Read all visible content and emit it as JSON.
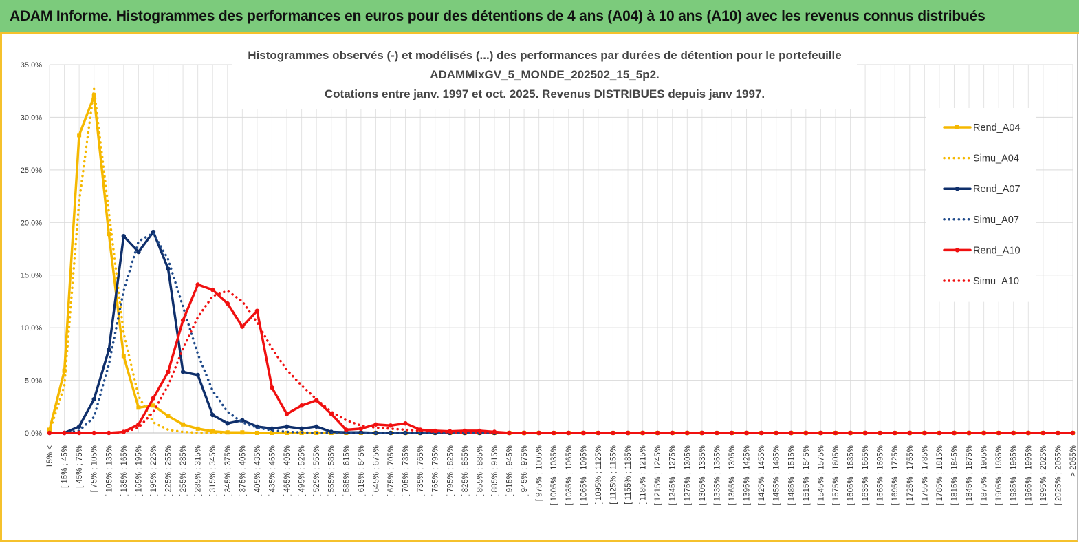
{
  "banner": {
    "title": "ADAM Informe. Histogrammes des performances en euros pour des détentions de 4 ans (A04) à 10 ans (A10) avec les revenus connus distribués"
  },
  "colors": {
    "banner_bg": "#7ccb7c",
    "accent_border": "#f5c12c",
    "A04": "#f5b800",
    "A07": "#0f2f6b",
    "A10": "#f01010"
  },
  "chart_data": {
    "type": "line",
    "title_lines": [
      "Histogrammes observés (-) et modélisés (...) des performances par durées de détention pour le portefeuille",
      "ADAMMixGV_5_MONDE_202502_15_5p2.",
      "Cotations entre janv. 1997 et oct. 2025. Revenus DISTRIBUES depuis janv 1997."
    ],
    "xlabel": "",
    "ylabel": "",
    "ylim": [
      0,
      35
    ],
    "yticks": [
      "0,0%",
      "5,0%",
      "10,0%",
      "15,0%",
      "20,0%",
      "25,0%",
      "30,0%",
      "35,0%"
    ],
    "grid": true,
    "legend_position": "right",
    "categories": [
      "15% <",
      "[ 15% ; 45%",
      "[ 45% ; 75%",
      "[ 75% ; 105%",
      "[ 105% ; 135%",
      "[ 135% ; 165%",
      "[ 165% ; 195%",
      "[ 195% ; 225%",
      "[ 225% ; 255%",
      "[ 255% ; 285%",
      "[ 285% ; 315%",
      "[ 315% ; 345%",
      "[ 345% ; 375%",
      "[ 375% ; 405%",
      "[ 405% ; 435%",
      "[ 435% ; 465%",
      "[ 465% ; 495%",
      "[ 495% ; 525%",
      "[ 525% ; 555%",
      "[ 555% ; 585%",
      "[ 585% ; 615%",
      "[ 615% ; 645%",
      "[ 645% ; 675%",
      "[ 675% ; 705%",
      "[ 705% ; 735%",
      "[ 735% ; 765%",
      "[ 765% ; 795%",
      "[ 795% ; 825%",
      "[ 825% ; 855%",
      "[ 855% ; 885%",
      "[ 885% ; 915%",
      "[ 915% ; 945%",
      "[ 945% ; 975%",
      "[ 975% ; 1005%",
      "[ 1005% ; 1035%",
      "[ 1035% ; 1065%",
      "[ 1065% ; 1095%",
      "[ 1095% ; 1125%",
      "[ 1125% ; 1155%",
      "[ 1155% ; 1185%",
      "[ 1185% ; 1215%",
      "[ 1215% ; 1245%",
      "[ 1245% ; 1275%",
      "[ 1275% ; 1305%",
      "[ 1305% ; 1335%",
      "[ 1335% ; 1365%",
      "[ 1365% ; 1395%",
      "[ 1395% ; 1425%",
      "[ 1425% ; 1455%",
      "[ 1455% ; 1485%",
      "[ 1485% ; 1515%",
      "[ 1515% ; 1545%",
      "[ 1545% ; 1575%",
      "[ 1575% ; 1605%",
      "[ 1605% ; 1635%",
      "[ 1635% ; 1665%",
      "[ 1665% ; 1695%",
      "[ 1695% ; 1725%",
      "[ 1725% ; 1755%",
      "[ 1755% ; 1785%",
      "[ 1785% ; 1815%",
      "[ 1815% ; 1845%",
      "[ 1845% ; 1875%",
      "[ 1875% ; 1905%",
      "[ 1905% ; 1935%",
      "[ 1935% ; 1965%",
      "[ 1965% ; 1995%",
      "[ 1995% ; 2025%",
      "[ 2025% ; 2055%",
      "> 2055%"
    ],
    "series": [
      {
        "name": "Rend_A04",
        "style": "solid",
        "marker": "square",
        "color": "#f5b800",
        "values": [
          0.3,
          5.9,
          28.3,
          32.0,
          18.9,
          7.3,
          2.4,
          2.6,
          1.6,
          0.8,
          0.4,
          0.15,
          0.05,
          0.05,
          0,
          0,
          0,
          0,
          0,
          0,
          0,
          0,
          0,
          0,
          0,
          0,
          0,
          0,
          0,
          0,
          0,
          0,
          0,
          0,
          0,
          0,
          0,
          0,
          0,
          0,
          0,
          0,
          0,
          0,
          0,
          0,
          0,
          0,
          0,
          0,
          0,
          0,
          0,
          0,
          0,
          0,
          0,
          0,
          0,
          0,
          0,
          0,
          0,
          0,
          0,
          0,
          0,
          0,
          0,
          0
        ]
      },
      {
        "name": "Simu_A04",
        "style": "dotted",
        "marker": "none",
        "color": "#f5b800",
        "values": [
          0.1,
          4.5,
          22.0,
          32.7,
          21.0,
          9.5,
          3.5,
          1.0,
          0.3,
          0.1,
          0.02,
          0,
          0,
          0,
          0,
          0,
          0,
          0,
          0,
          0,
          0,
          0,
          0,
          0,
          0,
          0,
          0,
          0,
          0,
          0,
          0,
          0,
          0,
          0,
          0,
          0,
          0,
          0,
          0,
          0,
          0,
          0,
          0,
          0,
          0,
          0,
          0,
          0,
          0,
          0,
          0,
          0,
          0,
          0,
          0,
          0,
          0,
          0,
          0,
          0,
          0,
          0,
          0,
          0,
          0,
          0,
          0,
          0,
          0,
          0
        ]
      },
      {
        "name": "Rend_A07",
        "style": "solid",
        "marker": "circle",
        "color": "#0f2f6b",
        "values": [
          0,
          0,
          0.6,
          3.2,
          7.9,
          18.7,
          17.2,
          19.1,
          15.6,
          5.8,
          5.5,
          1.7,
          0.9,
          1.2,
          0.6,
          0.4,
          0.6,
          0.4,
          0.6,
          0.1,
          0.05,
          0.05,
          0,
          0,
          0,
          0,
          0,
          0,
          0,
          0,
          0,
          0,
          0,
          0,
          0,
          0,
          0,
          0,
          0,
          0,
          0,
          0,
          0,
          0,
          0,
          0,
          0,
          0,
          0,
          0,
          0,
          0,
          0,
          0,
          0,
          0,
          0,
          0,
          0,
          0,
          0,
          0,
          0,
          0,
          0,
          0,
          0,
          0,
          0,
          0
        ]
      },
      {
        "name": "Simu_A07",
        "style": "dotted",
        "marker": "none",
        "color": "#1f4a8a",
        "values": [
          0,
          0,
          0.2,
          1.5,
          6.5,
          13.5,
          18.2,
          19.0,
          16.5,
          12.0,
          7.5,
          4.0,
          2.0,
          1.0,
          0.5,
          0.25,
          0.1,
          0.05,
          0,
          0,
          0,
          0,
          0,
          0,
          0,
          0,
          0,
          0,
          0,
          0,
          0,
          0,
          0,
          0,
          0,
          0,
          0,
          0,
          0,
          0,
          0,
          0,
          0,
          0,
          0,
          0,
          0,
          0,
          0,
          0,
          0,
          0,
          0,
          0,
          0,
          0,
          0,
          0,
          0,
          0,
          0,
          0,
          0,
          0,
          0,
          0,
          0,
          0,
          0,
          0
        ]
      },
      {
        "name": "Rend_A10",
        "style": "solid",
        "marker": "circle",
        "color": "#f01010",
        "values": [
          0,
          0,
          0,
          0,
          0,
          0.1,
          0.8,
          3.3,
          5.8,
          10.7,
          14.1,
          13.6,
          12.3,
          10.1,
          11.6,
          4.3,
          1.8,
          2.6,
          3.1,
          1.8,
          0.3,
          0.4,
          0.8,
          0.7,
          0.9,
          0.3,
          0.2,
          0.15,
          0.2,
          0.2,
          0.1,
          0,
          0,
          0,
          0,
          0,
          0,
          0,
          0,
          0,
          0,
          0,
          0,
          0,
          0,
          0,
          0,
          0,
          0,
          0,
          0,
          0,
          0,
          0,
          0,
          0,
          0,
          0,
          0,
          0,
          0,
          0,
          0,
          0,
          0,
          0,
          0,
          0,
          0,
          0
        ]
      },
      {
        "name": "Simu_A10",
        "style": "dotted",
        "marker": "none",
        "color": "#f01010",
        "values": [
          0,
          0,
          0,
          0,
          0,
          0.05,
          0.5,
          2.0,
          4.5,
          8.0,
          11.0,
          13.0,
          13.5,
          12.5,
          10.5,
          8.0,
          6.0,
          4.5,
          3.2,
          2.0,
          1.2,
          0.7,
          0.5,
          0.4,
          0.3,
          0.2,
          0.1,
          0.05,
          0,
          0,
          0,
          0,
          0,
          0,
          0,
          0,
          0,
          0,
          0,
          0,
          0,
          0,
          0,
          0,
          0,
          0,
          0,
          0,
          0,
          0,
          0,
          0,
          0,
          0,
          0,
          0,
          0,
          0,
          0,
          0,
          0,
          0,
          0,
          0,
          0,
          0,
          0,
          0,
          0,
          0
        ]
      }
    ]
  }
}
